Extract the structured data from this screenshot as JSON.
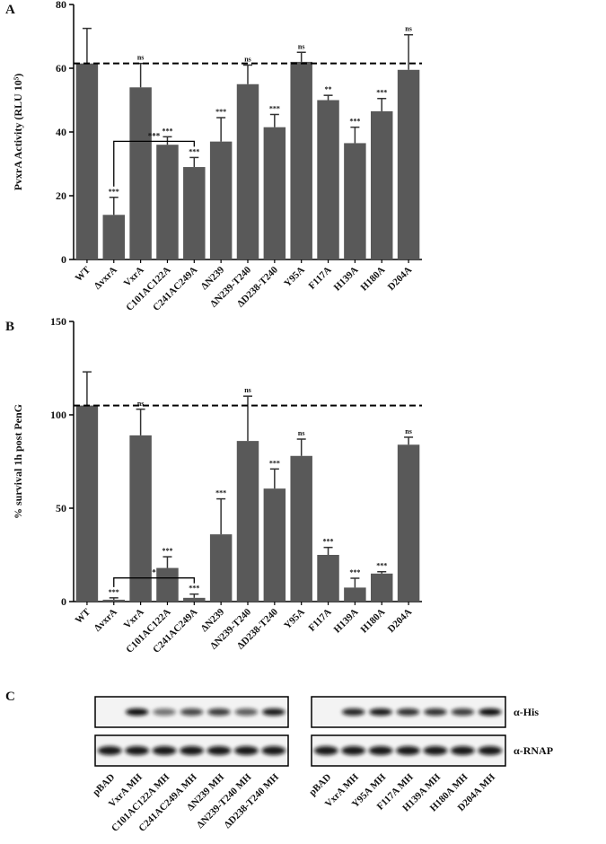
{
  "chart_data": [
    {
      "type": "bar",
      "panel": "A",
      "ylabel": "PvxrA Activity (RLU 10⁵)",
      "categories": [
        "WT",
        "ΔvxrA",
        "VxrA",
        "C101AC122A",
        "C241AC249A",
        "ΔN239",
        "ΔN239-T240",
        "ΔD238-T240",
        "Y95A",
        "F117A",
        "H139A",
        "H180A",
        "D204A"
      ],
      "values": [
        61.5,
        14,
        54,
        36,
        29,
        37,
        55,
        41.5,
        62,
        50,
        36.5,
        46.5,
        59.5
      ],
      "errors": [
        11,
        5.5,
        7.5,
        2.5,
        3,
        7.5,
        6,
        4,
        3,
        1.5,
        5,
        4,
        11
      ],
      "annotations": [
        null,
        "***",
        "ns",
        "***",
        "***",
        "***",
        "ns",
        "***",
        "ns",
        "**",
        "***",
        "***",
        "ns"
      ],
      "color": "#595959",
      "ylim": [
        0,
        80
      ],
      "yticks": [
        0,
        20,
        40,
        60,
        80
      ],
      "reference_line": 61.5,
      "bracket": {
        "between": [
          "ΔvxrA",
          "C241AC249A"
        ],
        "label": "***"
      }
    },
    {
      "type": "bar",
      "panel": "B",
      "ylabel": "% survival  1h post PenG",
      "categories": [
        "WT",
        "ΔvxrA",
        "VxrA",
        "C101AC122A",
        "C241AC249A",
        "ΔN239",
        "ΔN239-T240",
        "ΔD238-T240",
        "Y95A",
        "F117A",
        "H139A",
        "H180A",
        "D204A"
      ],
      "values": [
        105,
        1,
        89,
        18,
        2,
        36,
        86,
        60.5,
        78,
        25,
        7.5,
        15,
        84
      ],
      "errors": [
        18,
        1,
        14,
        6,
        2,
        19,
        24,
        10.5,
        9,
        4,
        5,
        1,
        4
      ],
      "annotations": [
        null,
        "***",
        "ns",
        "***",
        "***",
        "***",
        "ns",
        "***",
        "ns",
        "***",
        "***",
        "***",
        "ns"
      ],
      "color": "#595959",
      "ylim": [
        0,
        150
      ],
      "yticks": [
        0,
        50,
        100,
        150
      ],
      "reference_line": 105,
      "bracket": {
        "between": [
          "ΔvxrA",
          "C241AC249A"
        ],
        "label": "*"
      }
    }
  ],
  "blot": {
    "panel": "C",
    "left_lanes": [
      "pBAD",
      "VxrA MH",
      "C101AC122A MH",
      "C241AC249A MH",
      "ΔN239 MH",
      "ΔN239-T240 MH",
      "ΔD238-T240 MH"
    ],
    "right_lanes": [
      "pBAD",
      "VxrA MH",
      "Y95A MH",
      "F117A MH",
      "H139A MH",
      "H180A MH",
      "D204A MH"
    ],
    "rows": [
      "α-His",
      "α-RNAP"
    ]
  }
}
